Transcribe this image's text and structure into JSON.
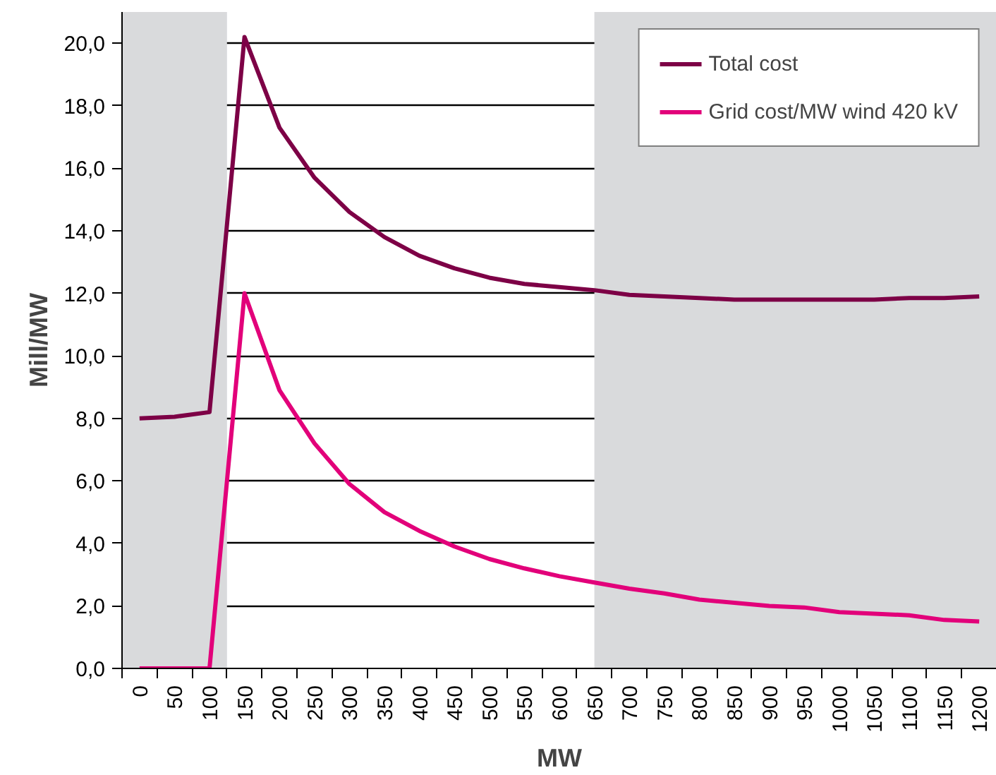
{
  "chart_data": {
    "type": "line",
    "xlabel": "MW",
    "ylabel": "Mill/MW",
    "x": [
      0,
      50,
      100,
      150,
      200,
      250,
      300,
      350,
      400,
      450,
      500,
      550,
      600,
      650,
      700,
      750,
      800,
      850,
      900,
      950,
      1000,
      1050,
      1100,
      1150,
      1200
    ],
    "series": [
      {
        "name": "Total cost",
        "color": "#7d0046",
        "values": [
          8.0,
          8.05,
          8.2,
          20.2,
          17.3,
          15.7,
          14.6,
          13.8,
          13.2,
          12.8,
          12.5,
          12.3,
          12.2,
          12.1,
          11.95,
          11.9,
          11.85,
          11.8,
          11.8,
          11.8,
          11.8,
          11.8,
          11.85,
          11.85,
          11.9
        ]
      },
      {
        "name": "Grid cost/MW wind 420 kV",
        "color": "#e2007a",
        "values": [
          0.0,
          0.0,
          0.0,
          12.0,
          8.9,
          7.2,
          5.9,
          5.0,
          4.4,
          3.9,
          3.5,
          3.2,
          2.95,
          2.75,
          2.55,
          2.4,
          2.2,
          2.1,
          2.0,
          1.95,
          1.8,
          1.75,
          1.7,
          1.55,
          1.5
        ]
      }
    ],
    "xlim": [
      -25,
      1225
    ],
    "xticks": [
      0,
      50,
      100,
      150,
      200,
      250,
      300,
      350,
      400,
      450,
      500,
      550,
      600,
      650,
      700,
      750,
      800,
      850,
      900,
      950,
      1000,
      1050,
      1100,
      1150,
      1200
    ],
    "ylim": [
      0,
      21
    ],
    "yticks": [
      {
        "value": 0,
        "label": "0,0"
      },
      {
        "value": 2,
        "label": "2,0"
      },
      {
        "value": 4,
        "label": "4,0"
      },
      {
        "value": 6,
        "label": "6,0"
      },
      {
        "value": 8,
        "label": "8,0"
      },
      {
        "value": 10,
        "label": "10,0"
      },
      {
        "value": 12,
        "label": "12,0"
      },
      {
        "value": 14,
        "label": "14,0"
      },
      {
        "value": 16,
        "label": "16,0"
      },
      {
        "value": 18,
        "label": "18,0"
      },
      {
        "value": 20,
        "label": "20,0"
      }
    ],
    "bands": [
      {
        "axis": "x",
        "from": -25,
        "to": 125,
        "color": "#d9dadc"
      },
      {
        "axis": "x",
        "from": 650,
        "to": 1225,
        "color": "#d9dadc"
      }
    ],
    "grid": "y",
    "legend": "top right",
    "marker": "none",
    "line_style": "solid"
  }
}
